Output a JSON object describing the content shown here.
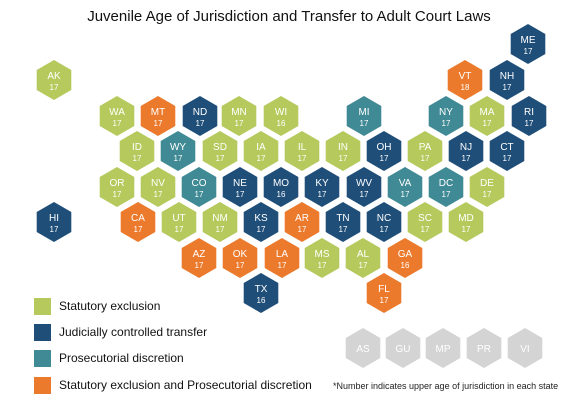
{
  "title": "Juvenile Age of Jurisdiction and Transfer to Adult Court Laws",
  "colors": {
    "statutory_exclusion": "#b5c95d",
    "judicially_controlled_transfer": "#1f4e79",
    "prosecutorial_discretion": "#3f8a94",
    "statutory_and_prosecutorial": "#ec7a2d",
    "territory": "#d4d4d4"
  },
  "legend": [
    {
      "key": "statutory_exclusion",
      "label": "Statutory exclusion"
    },
    {
      "key": "judicially_controlled_transfer",
      "label": "Judicially controlled transfer"
    },
    {
      "key": "prosecutorial_discretion",
      "label": "Prosecutorial discretion"
    },
    {
      "key": "statutory_and_prosecutorial",
      "label": "Statutory exclusion and Prosecutorial discretion"
    }
  ],
  "footnote": "*Number indicates upper age of jurisdiction in each state",
  "states": [
    {
      "abbr": "ME",
      "age": "17",
      "type": "judicially_controlled_transfer"
    },
    {
      "abbr": "AK",
      "age": "17",
      "type": "statutory_exclusion"
    },
    {
      "abbr": "VT",
      "age": "18",
      "type": "statutory_and_prosecutorial"
    },
    {
      "abbr": "NH",
      "age": "17",
      "type": "judicially_controlled_transfer"
    },
    {
      "abbr": "WA",
      "age": "17",
      "type": "statutory_exclusion"
    },
    {
      "abbr": "MT",
      "age": "17",
      "type": "statutory_and_prosecutorial"
    },
    {
      "abbr": "ND",
      "age": "17",
      "type": "judicially_controlled_transfer"
    },
    {
      "abbr": "MN",
      "age": "17",
      "type": "statutory_exclusion"
    },
    {
      "abbr": "WI",
      "age": "16",
      "type": "statutory_exclusion"
    },
    {
      "abbr": "MI",
      "age": "17",
      "type": "prosecutorial_discretion"
    },
    {
      "abbr": "NY",
      "age": "17",
      "type": "prosecutorial_discretion"
    },
    {
      "abbr": "MA",
      "age": "17",
      "type": "statutory_exclusion"
    },
    {
      "abbr": "RI",
      "age": "17",
      "type": "judicially_controlled_transfer"
    },
    {
      "abbr": "ID",
      "age": "17",
      "type": "statutory_exclusion"
    },
    {
      "abbr": "WY",
      "age": "17",
      "type": "prosecutorial_discretion"
    },
    {
      "abbr": "SD",
      "age": "17",
      "type": "statutory_exclusion"
    },
    {
      "abbr": "IA",
      "age": "17",
      "type": "statutory_exclusion"
    },
    {
      "abbr": "IL",
      "age": "17",
      "type": "statutory_exclusion"
    },
    {
      "abbr": "IN",
      "age": "17",
      "type": "statutory_exclusion"
    },
    {
      "abbr": "OH",
      "age": "17",
      "type": "judicially_controlled_transfer"
    },
    {
      "abbr": "PA",
      "age": "17",
      "type": "statutory_exclusion"
    },
    {
      "abbr": "NJ",
      "age": "17",
      "type": "judicially_controlled_transfer"
    },
    {
      "abbr": "CT",
      "age": "17",
      "type": "judicially_controlled_transfer"
    },
    {
      "abbr": "OR",
      "age": "17",
      "type": "statutory_exclusion"
    },
    {
      "abbr": "NV",
      "age": "17",
      "type": "statutory_exclusion"
    },
    {
      "abbr": "CO",
      "age": "17",
      "type": "prosecutorial_discretion"
    },
    {
      "abbr": "NE",
      "age": "17",
      "type": "judicially_controlled_transfer"
    },
    {
      "abbr": "MO",
      "age": "16",
      "type": "judicially_controlled_transfer"
    },
    {
      "abbr": "KY",
      "age": "17",
      "type": "judicially_controlled_transfer"
    },
    {
      "abbr": "WV",
      "age": "17",
      "type": "judicially_controlled_transfer"
    },
    {
      "abbr": "VA",
      "age": "17",
      "type": "prosecutorial_discretion"
    },
    {
      "abbr": "DC",
      "age": "17",
      "type": "prosecutorial_discretion"
    },
    {
      "abbr": "DE",
      "age": "17",
      "type": "statutory_exclusion"
    },
    {
      "abbr": "HI",
      "age": "17",
      "type": "judicially_controlled_transfer"
    },
    {
      "abbr": "CA",
      "age": "17",
      "type": "statutory_and_prosecutorial"
    },
    {
      "abbr": "UT",
      "age": "17",
      "type": "statutory_exclusion"
    },
    {
      "abbr": "NM",
      "age": "17",
      "type": "statutory_exclusion"
    },
    {
      "abbr": "KS",
      "age": "17",
      "type": "judicially_controlled_transfer"
    },
    {
      "abbr": "AR",
      "age": "17",
      "type": "statutory_and_prosecutorial"
    },
    {
      "abbr": "TN",
      "age": "17",
      "type": "judicially_controlled_transfer"
    },
    {
      "abbr": "NC",
      "age": "17",
      "type": "judicially_controlled_transfer"
    },
    {
      "abbr": "SC",
      "age": "17",
      "type": "statutory_exclusion"
    },
    {
      "abbr": "MD",
      "age": "17",
      "type": "statutory_exclusion"
    },
    {
      "abbr": "AZ",
      "age": "17",
      "type": "statutory_and_prosecutorial"
    },
    {
      "abbr": "OK",
      "age": "17",
      "type": "statutory_and_prosecutorial"
    },
    {
      "abbr": "LA",
      "age": "17",
      "type": "statutory_and_prosecutorial"
    },
    {
      "abbr": "MS",
      "age": "17",
      "type": "statutory_exclusion"
    },
    {
      "abbr": "AL",
      "age": "17",
      "type": "statutory_exclusion"
    },
    {
      "abbr": "GA",
      "age": "16",
      "type": "statutory_and_prosecutorial"
    },
    {
      "abbr": "TX",
      "age": "16",
      "type": "judicially_controlled_transfer"
    },
    {
      "abbr": "FL",
      "age": "17",
      "type": "statutory_and_prosecutorial"
    },
    {
      "abbr": "AS",
      "age": "",
      "type": "territory"
    },
    {
      "abbr": "GU",
      "age": "",
      "type": "territory"
    },
    {
      "abbr": "MP",
      "age": "",
      "type": "territory"
    },
    {
      "abbr": "PR",
      "age": "",
      "type": "territory"
    },
    {
      "abbr": "VI",
      "age": "",
      "type": "territory"
    }
  ]
}
